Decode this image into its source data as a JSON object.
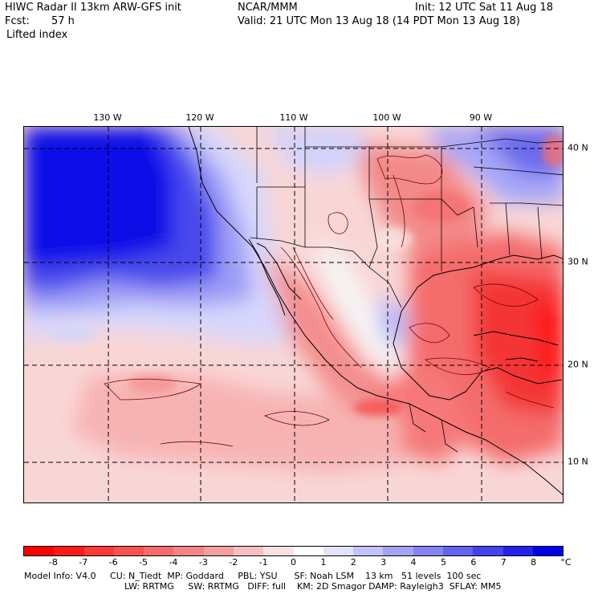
{
  "header": {
    "title": "HIWC Radar II 13km ARW-GFS init",
    "org": "NCAR/MMM",
    "init": "Init: 12 UTC Sat 11 Aug 18",
    "fcst_label": "Fcst:",
    "fcst_value": "57 h",
    "valid": "Valid: 21 UTC Mon 13 Aug 18 (14 PDT Mon 13 Aug 18)",
    "field": "Lifted index"
  },
  "map": {
    "lon_labels": [
      "130 W",
      "120 W",
      "110 W",
      "100 W",
      "90 W"
    ],
    "lat_labels": [
      "40 N",
      "30 N",
      "20 N",
      "10 N"
    ]
  },
  "colorbar": {
    "unit": "°C",
    "labels": [
      "-8",
      "-7",
      "-6",
      "-5",
      "-4",
      "-3",
      "-2",
      "-1",
      "0",
      "1",
      "2",
      "3",
      "4",
      "5",
      "6",
      "7",
      "8"
    ],
    "colors": [
      "#ff0000",
      "#ff1a1a",
      "#ff3838",
      "#fa5252",
      "#f76b6b",
      "#f58484",
      "#f5a0a0",
      "#f7c0c0",
      "#fbe2e2",
      "#ffffff",
      "#e3e3fd",
      "#c3c3fb",
      "#a3a3f8",
      "#8484f3",
      "#6464ee",
      "#4343ec",
      "#2222ea",
      "#0000e8"
    ]
  },
  "footer": {
    "line1": "Model Info: V4.0     CU: N_Tiedt  MP: Goddard     PBL: YSU      SF: Noah LSM    13 km   51 levels  100 sec",
    "line2": "LW: RRTMG     SW: RRTMG   DIFF: full    KM: 2D Smagor DAMP: Rayleigh3  SFLAY: MM5"
  }
}
